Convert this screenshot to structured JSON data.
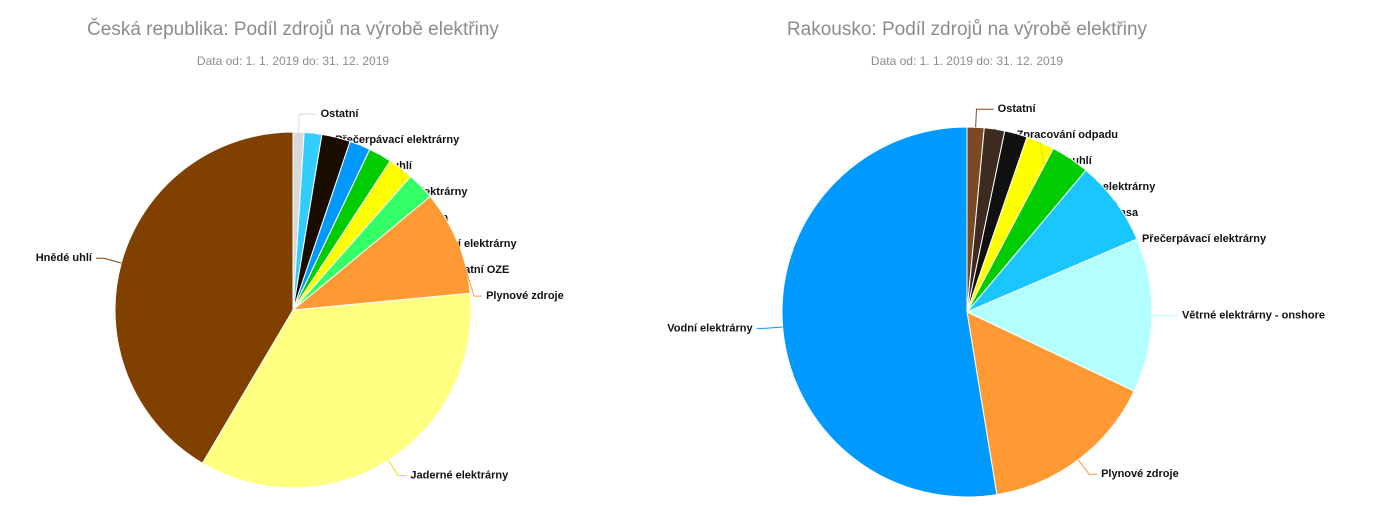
{
  "chart_data": [
    {
      "type": "pie",
      "title": "Česká republika: Podíl zdrojů na výrobě elektřiny",
      "subtitle": "Data od: 1. 1. 2019 do: 31. 12. 2019",
      "categories": [
        "Ostatní",
        "Přečerpávací elektrárny",
        "Černé uhlí",
        "Vodní elektrárny",
        "Biomasa",
        "Solární elektrárny",
        "Ostatní OZE",
        "Plynové zdroje",
        "Jaderné elektrárny",
        "Hnědé uhlí"
      ],
      "values": [
        1,
        1.6,
        2.6,
        1.9,
        2.1,
        2.3,
        2.5,
        9.5,
        35,
        41.5
      ],
      "colors": [
        "#d9d9d9",
        "#33ccff",
        "#1a0d00",
        "#0099ff",
        "#00cc00",
        "#ffff00",
        "#33ff66",
        "#ff9933",
        "#ffff80",
        "#804000"
      ]
    },
    {
      "type": "pie",
      "title": "Rakousko: Podíl zdrojů na výrobě elektřiny",
      "subtitle": "Data od: 1. 1. 2019 do: 31. 12. 2019",
      "categories": [
        "Ostatní",
        "Zpracování odpadu",
        "Černé uhlí",
        "Solární elektrárny",
        "Biomasa",
        "Přečerpávací elektrárny",
        "Větrné elektrárny - onshore",
        "Plynové zdroje",
        "Vodní elektrárny"
      ],
      "values": [
        1.5,
        1.8,
        2,
        2.5,
        3.4,
        7.5,
        13.6,
        15.5,
        53
      ],
      "colors": [
        "#7b4a22",
        "#3d2b1f",
        "#111111",
        "#ffff00",
        "#00cc00",
        "#1ac6ff",
        "#b3ffff",
        "#ff9933",
        "#0099ff"
      ]
    }
  ]
}
